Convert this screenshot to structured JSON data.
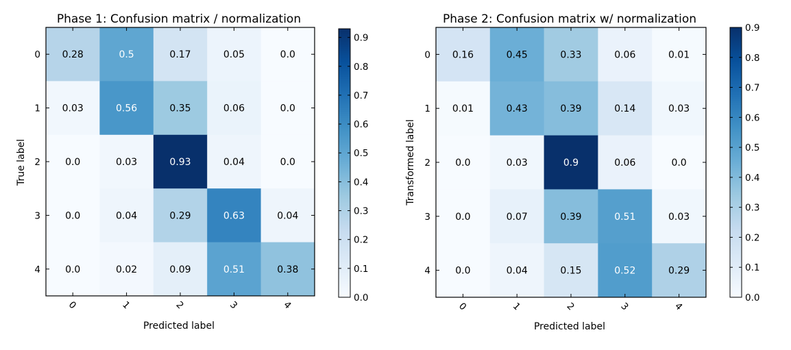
{
  "chart_data": [
    {
      "type": "heatmap",
      "title": "Phase 1: Confusion matrix / normalization",
      "xlabel": "Predicted label",
      "ylabel": "True label",
      "x_categories": [
        "0",
        "1",
        "2",
        "3",
        "4"
      ],
      "y_categories": [
        "0",
        "1",
        "2",
        "3",
        "4"
      ],
      "values": [
        [
          0.28,
          0.5,
          0.17,
          0.05,
          0.0
        ],
        [
          0.03,
          0.56,
          0.35,
          0.06,
          0.0
        ],
        [
          0.0,
          0.03,
          0.93,
          0.04,
          0.0
        ],
        [
          0.0,
          0.04,
          0.29,
          0.63,
          0.04
        ],
        [
          0.0,
          0.02,
          0.09,
          0.51,
          0.38
        ]
      ],
      "cell_labels": [
        [
          "0.28",
          "0.5",
          "0.17",
          "0.05",
          "0.0"
        ],
        [
          "0.03",
          "0.56",
          "0.35",
          "0.06",
          "0.0"
        ],
        [
          "0.0",
          "0.03",
          "0.93",
          "0.04",
          "0.0"
        ],
        [
          "0.0",
          "0.04",
          "0.29",
          "0.63",
          "0.04"
        ],
        [
          "0.0",
          "0.02",
          "0.09",
          "0.51",
          "0.38"
        ]
      ],
      "colormap": "Blues",
      "color_range": [
        0.0,
        0.93
      ],
      "colorbar_ticks": [
        "0.0",
        "0.1",
        "0.2",
        "0.3",
        "0.4",
        "0.5",
        "0.6",
        "0.7",
        "0.8",
        "0.9"
      ]
    },
    {
      "type": "heatmap",
      "title": "Phase 2: Confusion matrix w/ normalization",
      "xlabel": "Predicted label",
      "ylabel": "Transformed label",
      "x_categories": [
        "0",
        "1",
        "2",
        "3",
        "4"
      ],
      "y_categories": [
        "0",
        "1",
        "2",
        "3",
        "4"
      ],
      "values": [
        [
          0.16,
          0.45,
          0.33,
          0.06,
          0.01
        ],
        [
          0.01,
          0.43,
          0.39,
          0.14,
          0.03
        ],
        [
          0.0,
          0.03,
          0.9,
          0.06,
          0.0
        ],
        [
          0.0,
          0.07,
          0.39,
          0.51,
          0.03
        ],
        [
          0.0,
          0.04,
          0.15,
          0.52,
          0.29
        ]
      ],
      "cell_labels": [
        [
          "0.16",
          "0.45",
          "0.33",
          "0.06",
          "0.01"
        ],
        [
          "0.01",
          "0.43",
          "0.39",
          "0.14",
          "0.03"
        ],
        [
          "0.0",
          "0.03",
          "0.9",
          "0.06",
          "0.0"
        ],
        [
          "0.0",
          "0.07",
          "0.39",
          "0.51",
          "0.03"
        ],
        [
          "0.0",
          "0.04",
          "0.15",
          "0.52",
          "0.29"
        ]
      ],
      "colormap": "Blues",
      "color_range": [
        0.0,
        0.9
      ],
      "colorbar_ticks": [
        "0.0",
        "0.1",
        "0.2",
        "0.3",
        "0.4",
        "0.5",
        "0.6",
        "0.7",
        "0.8",
        "0.9"
      ]
    }
  ]
}
